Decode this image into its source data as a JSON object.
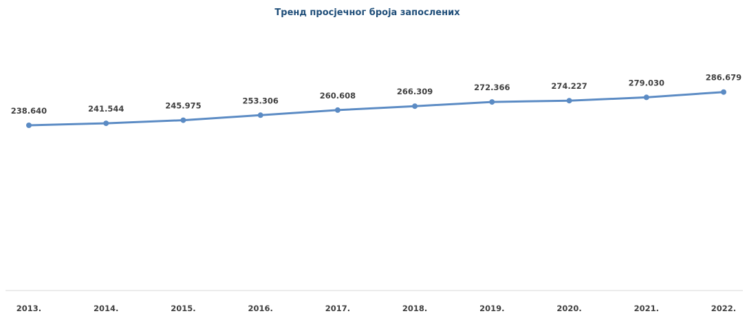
{
  "chart_data": {
    "type": "line",
    "title": "Тренд просјечног броја запослених",
    "xlabel": "",
    "ylabel": "",
    "categories": [
      "2013.",
      "2014.",
      "2015.",
      "2016.",
      "2017.",
      "2018.",
      "2019.",
      "2020.",
      "2021.",
      "2022."
    ],
    "series": [
      {
        "values": [
          238640,
          241544,
          245975,
          253306,
          260608,
          266309,
          272366,
          274227,
          279030,
          286679
        ],
        "labels": [
          "238.640",
          "241.544",
          "245.975",
          "253.306",
          "260.608",
          "266.309",
          "272.366",
          "274.227",
          "279.030",
          "286.679"
        ],
        "color": "#5b8bc4"
      }
    ],
    "ylim": [
      0,
      320000
    ],
    "grid": false,
    "legend": "none",
    "axis_color": "#d9d9d9"
  }
}
